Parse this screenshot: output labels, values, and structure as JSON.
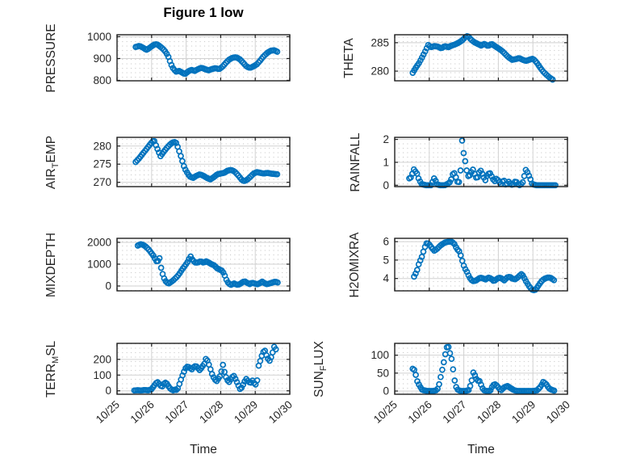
{
  "title": "Figure 1 low",
  "x_axis": {
    "label": "Time",
    "tick_labels": [
      "10/25",
      "10/26",
      "10/27",
      "10/28",
      "10/29",
      "10/30"
    ]
  },
  "style": {
    "marker_color": "#0072BD",
    "axis_color": "#1f1f1f",
    "grid_color": "#d2d2d2",
    "minor_dot_color": "#c8c8c8",
    "text_color": "#262626",
    "background": "#ffffff"
  },
  "chart_data": [
    {
      "type": "scatter",
      "name": "pressure",
      "ylabel": {
        "pre": "PRESSURE",
        "sub": "",
        "post": ""
      },
      "ylabel_text": "PRESSURE",
      "yticks": [
        800,
        900,
        1000
      ],
      "ylim": [
        798,
        1009
      ],
      "xlim_days": [
        0,
        5
      ],
      "x": [
        0.54,
        0.65,
        0.75,
        0.85,
        0.92,
        1.0,
        1.08,
        1.15,
        1.25,
        1.33,
        1.42,
        1.5,
        1.55,
        1.62,
        1.7,
        1.8,
        1.9,
        1.97,
        2.05,
        2.15,
        2.25,
        2.35,
        2.45,
        2.55,
        2.65,
        2.75,
        2.85,
        2.95,
        3.05,
        3.15,
        3.25,
        3.35,
        3.45,
        3.55,
        3.65,
        3.75,
        3.85,
        3.95,
        4.05,
        4.15,
        4.25,
        4.35,
        4.45,
        4.55,
        4.65
      ],
      "y": [
        953,
        958,
        950,
        940,
        946,
        956,
        964,
        966,
        955,
        944,
        928,
        903,
        878,
        856,
        840,
        843,
        834,
        829,
        840,
        848,
        843,
        852,
        858,
        851,
        846,
        852,
        856,
        851,
        862,
        880,
        896,
        904,
        906,
        897,
        881,
        863,
        857,
        864,
        874,
        892,
        912,
        926,
        936,
        938,
        930
      ]
    },
    {
      "type": "scatter",
      "name": "theta",
      "ylabel": {
        "pre": "THETA",
        "sub": "",
        "post": ""
      },
      "ylabel_text": "THETA",
      "yticks": [
        280,
        285
      ],
      "ylim": [
        278.3,
        286.4
      ],
      "xlim_days": [
        0,
        5
      ],
      "x": [
        0.52,
        0.6,
        0.7,
        0.8,
        0.9,
        0.97,
        1.05,
        1.15,
        1.25,
        1.35,
        1.45,
        1.55,
        1.65,
        1.75,
        1.85,
        1.95,
        2.05,
        2.12,
        2.2,
        2.3,
        2.4,
        2.5,
        2.6,
        2.7,
        2.8,
        2.9,
        3.0,
        3.1,
        3.2,
        3.3,
        3.4,
        3.5,
        3.6,
        3.7,
        3.8,
        3.9,
        4.0,
        4.1,
        4.2,
        4.3,
        4.4,
        4.5,
        4.6
      ],
      "y": [
        279.7,
        280.5,
        281.4,
        282.5,
        283.7,
        284.6,
        284.2,
        284.4,
        284.3,
        284.0,
        284.4,
        284.2,
        284.5,
        284.7,
        285.0,
        285.4,
        286.0,
        286.2,
        285.6,
        285.1,
        284.8,
        284.5,
        284.8,
        284.4,
        284.8,
        284.4,
        284.0,
        283.6,
        283.0,
        282.4,
        282.0,
        282.1,
        282.3,
        282.0,
        281.8,
        282.0,
        282.2,
        281.6,
        280.7,
        279.9,
        279.3,
        278.8,
        278.4
      ]
    },
    {
      "type": "scatter",
      "name": "air-temp",
      "ylabel": {
        "pre": "AIR",
        "sub": "T",
        "post": "EMP"
      },
      "ylabel_text": "AIR_TEMP",
      "yticks": [
        270,
        275,
        280
      ],
      "ylim": [
        268.8,
        282.4
      ],
      "xlim_days": [
        0,
        5
      ],
      "x": [
        0.54,
        0.62,
        0.72,
        0.82,
        0.92,
        1.0,
        1.07,
        1.15,
        1.26,
        1.35,
        1.45,
        1.55,
        1.65,
        1.72,
        1.84,
        1.95,
        2.02,
        2.1,
        2.2,
        2.3,
        2.4,
        2.5,
        2.6,
        2.7,
        2.8,
        2.9,
        3.0,
        3.1,
        3.2,
        3.3,
        3.4,
        3.5,
        3.6,
        3.67,
        3.75,
        3.85,
        3.95,
        4.05,
        4.15,
        4.25,
        4.35,
        4.45,
        4.55,
        4.65
      ],
      "y": [
        275.6,
        276.4,
        277.6,
        278.8,
        280.0,
        281.0,
        281.6,
        279.6,
        277.2,
        278.4,
        279.6,
        280.6,
        281.2,
        280.8,
        277.4,
        274.0,
        272.8,
        271.6,
        271.2,
        271.8,
        272.2,
        271.8,
        271.2,
        270.8,
        271.4,
        272.2,
        272.4,
        272.6,
        273.2,
        273.4,
        273.0,
        272.0,
        270.8,
        270.3,
        270.6,
        271.4,
        272.4,
        272.8,
        272.6,
        272.4,
        272.6,
        272.4,
        272.3,
        272.2
      ]
    },
    {
      "type": "scatter",
      "name": "rainfall",
      "ylabel": {
        "pre": "RAINFALL",
        "sub": "",
        "post": ""
      },
      "ylabel_text": "RAINFALL",
      "yticks": [
        0,
        1,
        2
      ],
      "ylim": [
        -0.06,
        2.09
      ],
      "xlim_days": [
        0,
        5
      ],
      "x": [
        0.42,
        0.48,
        0.55,
        0.6,
        0.65,
        0.7,
        0.78,
        0.9,
        1.05,
        1.15,
        1.22,
        1.3,
        1.45,
        1.58,
        1.65,
        1.7,
        1.75,
        1.8,
        1.85,
        1.9,
        1.95,
        2.0,
        2.04,
        2.09,
        2.14,
        2.2,
        2.26,
        2.32,
        2.38,
        2.44,
        2.5,
        2.56,
        2.62,
        2.68,
        2.75,
        2.82,
        2.88,
        2.95,
        3.02,
        3.08,
        3.15,
        3.22,
        3.3,
        3.36,
        3.42,
        3.5,
        3.56,
        3.62,
        3.7,
        3.8,
        3.86,
        3.92,
        3.98,
        4.1,
        4.25,
        4.4,
        4.55,
        4.67
      ],
      "y": [
        0.3,
        0.35,
        0.7,
        0.6,
        0.5,
        0.25,
        0.05,
        0,
        0,
        0.33,
        0.05,
        0,
        0,
        0.1,
        0.3,
        0.6,
        0.45,
        0.2,
        0.05,
        0.5,
        1.95,
        1.34,
        1.05,
        0.6,
        0.35,
        0.5,
        0.7,
        0.45,
        0.25,
        0.55,
        0.65,
        0.4,
        0.2,
        0.45,
        0.55,
        0.35,
        0.15,
        0.3,
        0.15,
        0.05,
        0.25,
        0,
        0.15,
        0.05,
        0,
        0.2,
        0.05,
        0,
        0.1,
        0.7,
        0.5,
        0.3,
        0.05,
        0,
        0,
        0,
        0,
        0
      ]
    },
    {
      "type": "scatter",
      "name": "mixdepth",
      "ylabel": {
        "pre": "MIXDEPTH",
        "sub": "",
        "post": ""
      },
      "ylabel_text": "MIXDEPTH",
      "yticks": [
        0,
        1000,
        2000
      ],
      "ylim": [
        -222,
        2185
      ],
      "xlim_days": [
        0,
        5
      ],
      "x": [
        0.6,
        0.68,
        0.75,
        0.82,
        0.9,
        0.97,
        1.04,
        1.1,
        1.17,
        1.22,
        1.26,
        1.3,
        1.34,
        1.38,
        1.44,
        1.5,
        1.58,
        1.66,
        1.74,
        1.82,
        1.9,
        1.98,
        2.06,
        2.12,
        2.19,
        2.27,
        2.35,
        2.42,
        2.5,
        2.58,
        2.66,
        2.73,
        2.81,
        2.89,
        2.96,
        3.04,
        3.1,
        3.16,
        3.23,
        3.31,
        3.38,
        3.44,
        3.5,
        3.58,
        3.63,
        3.69,
        3.76,
        3.84,
        3.91,
        3.99,
        4.06,
        4.14,
        4.2,
        4.27,
        4.34,
        4.42,
        4.5,
        4.58,
        4.65
      ],
      "y": [
        1850,
        1920,
        1890,
        1820,
        1700,
        1560,
        1420,
        1250,
        1050,
        1380,
        950,
        640,
        460,
        280,
        160,
        120,
        200,
        310,
        430,
        600,
        790,
        960,
        1140,
        1380,
        1180,
        1070,
        1080,
        1140,
        1070,
        1130,
        1070,
        1000,
        950,
        820,
        760,
        700,
        560,
        300,
        110,
        50,
        120,
        80,
        50,
        110,
        170,
        220,
        150,
        90,
        150,
        110,
        80,
        130,
        200,
        130,
        80,
        120,
        160,
        200,
        160
      ]
    },
    {
      "type": "scatter",
      "name": "h2omixra",
      "ylabel": {
        "pre": "H2OMIXRA",
        "sub": "",
        "post": ""
      },
      "ylabel_text": "H2OMIXRA",
      "yticks": [
        4,
        5,
        6
      ],
      "ylim": [
        3.33,
        6.18
      ],
      "xlim_days": [
        0,
        5
      ],
      "x": [
        0.56,
        0.64,
        0.7,
        0.79,
        0.86,
        0.93,
        1.0,
        1.08,
        1.15,
        1.22,
        1.33,
        1.45,
        1.56,
        1.64,
        1.72,
        1.8,
        1.88,
        1.98,
        2.03,
        2.08,
        2.14,
        2.2,
        2.28,
        2.36,
        2.48,
        2.56,
        2.63,
        2.71,
        2.79,
        2.87,
        2.94,
        3.02,
        3.1,
        3.17,
        3.25,
        3.33,
        3.4,
        3.48,
        3.56,
        3.64,
        3.68,
        3.73,
        3.8,
        3.88,
        3.97,
        4.05,
        4.12,
        4.19,
        4.27,
        4.35,
        4.43,
        4.5,
        4.58,
        4.65
      ],
      "y": [
        4.1,
        4.4,
        4.8,
        5.2,
        5.65,
        5.95,
        5.85,
        5.65,
        5.5,
        5.6,
        5.8,
        5.95,
        6.0,
        6.0,
        5.9,
        5.6,
        5.45,
        4.8,
        4.55,
        4.4,
        4.15,
        3.95,
        3.85,
        3.9,
        4.05,
        4.0,
        3.95,
        4.05,
        4.0,
        3.85,
        3.95,
        4.05,
        4.0,
        3.9,
        4.05,
        4.1,
        4.0,
        3.95,
        4.05,
        4.2,
        4.25,
        4.1,
        3.85,
        3.6,
        3.4,
        3.35,
        3.5,
        3.7,
        3.9,
        4.0,
        4.05,
        4.05,
        3.95,
        3.85
      ]
    },
    {
      "type": "scatter",
      "name": "terr-msl",
      "ylabel": {
        "pre": "TERR",
        "sub": "M",
        "post": "SL"
      },
      "ylabel_text": "TERR_MSL",
      "yticks": [
        0,
        100,
        200
      ],
      "ylim": [
        -22,
        302
      ],
      "xlim_days": [
        0,
        5
      ],
      "x": [
        0.5,
        0.6,
        0.7,
        0.8,
        0.9,
        1.0,
        1.06,
        1.12,
        1.18,
        1.24,
        1.3,
        1.36,
        1.42,
        1.48,
        1.55,
        1.62,
        1.68,
        1.74,
        1.8,
        1.86,
        1.92,
        1.98,
        2.04,
        2.1,
        2.16,
        2.22,
        2.28,
        2.34,
        2.4,
        2.46,
        2.52,
        2.58,
        2.64,
        2.7,
        2.76,
        2.82,
        2.88,
        2.94,
        3.0,
        3.06,
        3.12,
        3.18,
        3.25,
        3.32,
        3.38,
        3.44,
        3.5,
        3.56,
        3.62,
        3.68,
        3.74,
        3.8,
        3.86,
        3.92,
        3.98,
        4.04,
        4.1,
        4.16,
        4.22,
        4.28,
        4.35,
        4.42,
        4.48,
        4.55,
        4.62
      ],
      "y": [
        2,
        4,
        2,
        5,
        3,
        10,
        28,
        48,
        55,
        38,
        24,
        46,
        54,
        32,
        12,
        2,
        8,
        3,
        40,
        78,
        112,
        142,
        155,
        148,
        135,
        152,
        160,
        145,
        130,
        152,
        168,
        210,
        180,
        140,
        100,
        75,
        60,
        80,
        100,
        170,
        110,
        70,
        55,
        85,
        95,
        70,
        40,
        12,
        22,
        55,
        75,
        60,
        48,
        65,
        45,
        35,
        160,
        200,
        245,
        255,
        210,
        190,
        225,
        280,
        255
      ]
    },
    {
      "type": "scatter",
      "name": "sun-flux",
      "ylabel": {
        "pre": "SUN",
        "sub": "F",
        "post": "LUX"
      },
      "ylabel_text": "SUN_FLUX",
      "yticks": [
        0,
        50,
        100
      ],
      "ylim": [
        -9,
        133
      ],
      "xlim_days": [
        0,
        5
      ],
      "x": [
        0.52,
        0.58,
        0.65,
        0.72,
        0.8,
        0.95,
        1.1,
        1.2,
        1.26,
        1.31,
        1.35,
        1.39,
        1.43,
        1.47,
        1.51,
        1.55,
        1.59,
        1.63,
        1.67,
        1.71,
        1.75,
        1.8,
        1.9,
        2.05,
        2.15,
        2.22,
        2.28,
        2.34,
        2.39,
        2.44,
        2.49,
        2.54,
        2.59,
        2.66,
        2.76,
        2.84,
        2.9,
        2.96,
        3.02,
        3.08,
        3.16,
        3.26,
        3.36,
        3.46,
        3.56,
        3.7,
        3.85,
        4.0,
        4.12,
        4.22,
        4.3,
        4.38,
        4.46,
        4.55,
        4.65
      ],
      "y": [
        62,
        58,
        28,
        14,
        3,
        0,
        0,
        2,
        8,
        30,
        48,
        66,
        85,
        105,
        122,
        125,
        108,
        98,
        76,
        45,
        20,
        5,
        0,
        0,
        3,
        25,
        54,
        39,
        28,
        31,
        20,
        8,
        2,
        0,
        0,
        16,
        19,
        15,
        7,
        2,
        10,
        14,
        8,
        2,
        0,
        0,
        0,
        0,
        2,
        12,
        25,
        20,
        8,
        3,
        0
      ]
    }
  ]
}
